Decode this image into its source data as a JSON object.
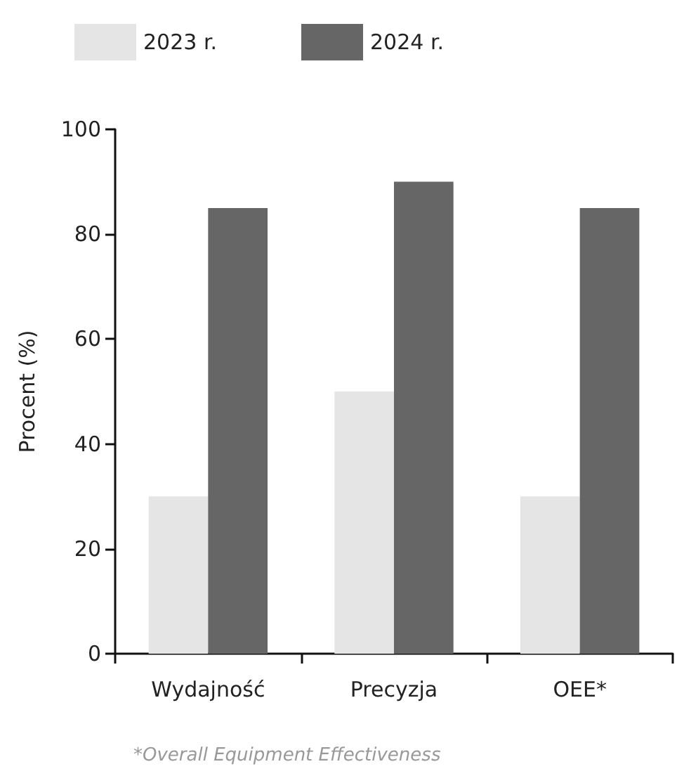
{
  "chart_data": {
    "type": "bar",
    "ylabel": "Procent (%)",
    "categories": [
      "Wydajność",
      "Precyzja",
      "OEE*"
    ],
    "series": [
      {
        "name": "2023 r.",
        "color": "#e5e5e5",
        "values": [
          30,
          50,
          30
        ]
      },
      {
        "name": "2024 r.",
        "color": "#666666",
        "values": [
          85,
          90,
          85
        ]
      }
    ],
    "ylim": [
      0,
      100
    ],
    "yticks": [
      0,
      20,
      40,
      60,
      80,
      100
    ],
    "grid": false,
    "legend": "top left",
    "annotations": [
      "*Overall Equipment Effectiveness"
    ]
  }
}
